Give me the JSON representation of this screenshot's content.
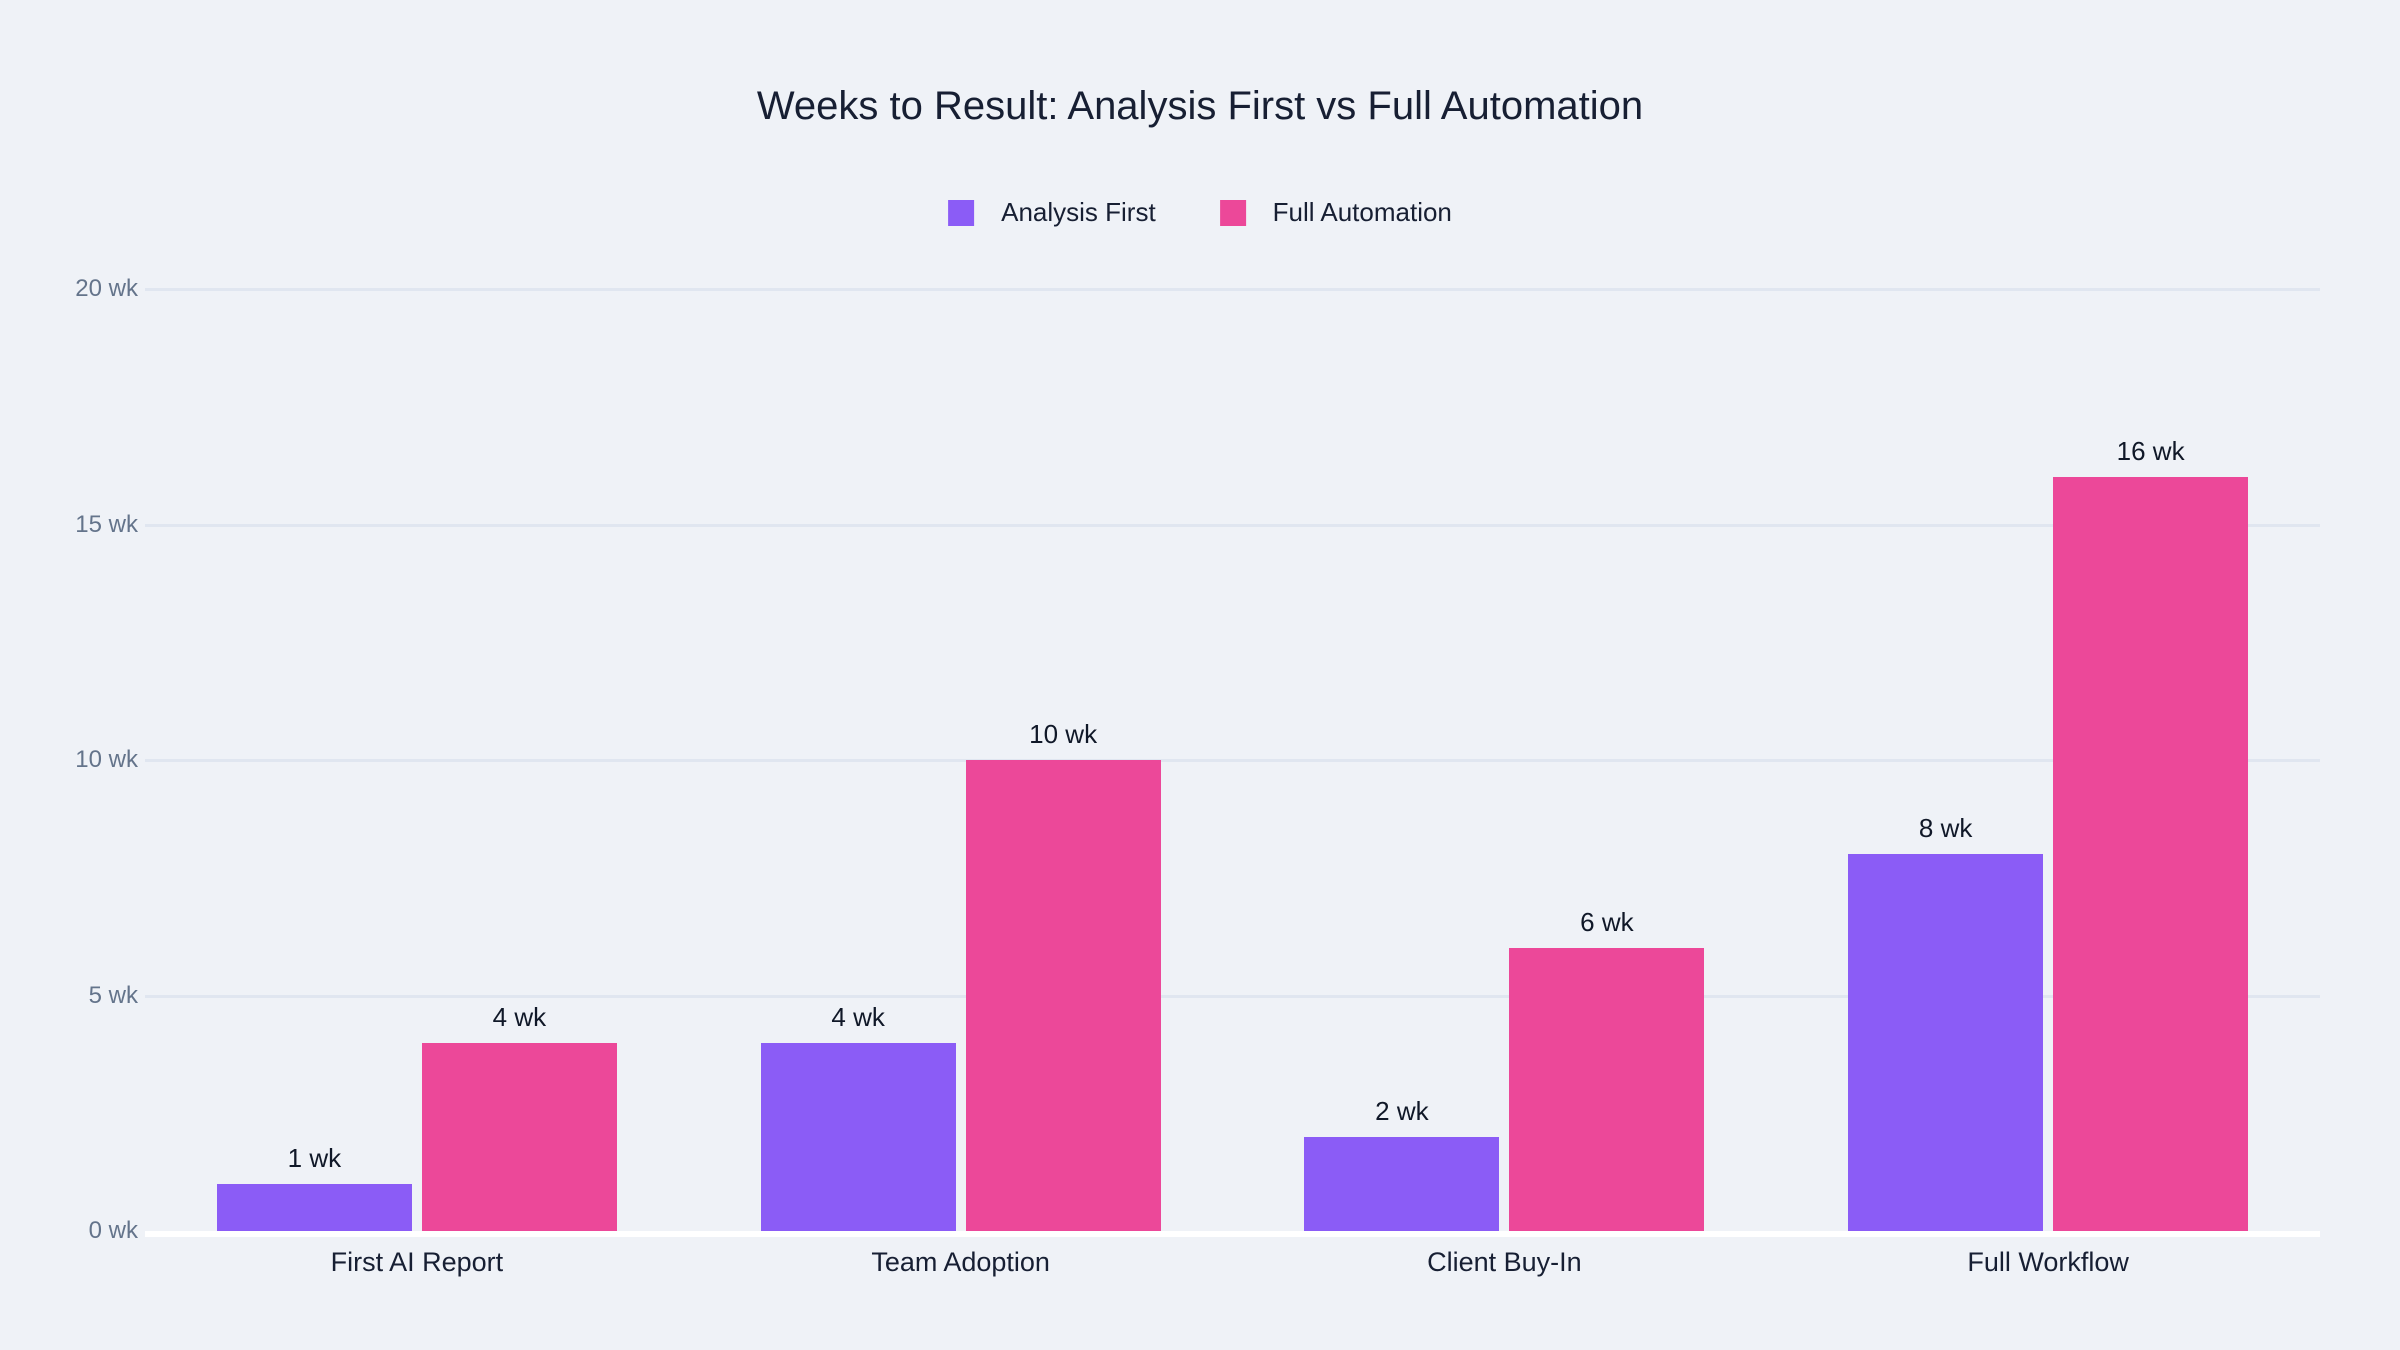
{
  "chart_data": {
    "type": "bar",
    "title": "Weeks to Result: Analysis First vs Full Automation",
    "categories": [
      "First AI Report",
      "Team Adoption",
      "Client Buy-In",
      "Full Workflow"
    ],
    "series": [
      {
        "name": "Analysis First",
        "color": "#8B5CF6",
        "values": [
          1,
          4,
          2,
          8
        ],
        "labels": [
          "1 wk",
          "4 wk",
          "2 wk",
          "8 wk"
        ]
      },
      {
        "name": "Full Automation",
        "color": "#EC4899",
        "values": [
          4,
          10,
          6,
          16
        ],
        "labels": [
          "4 wk",
          "10 wk",
          "6 wk",
          "16 wk"
        ]
      }
    ],
    "ylabel_unit": "wk",
    "yticks": [
      "0 wk",
      "5 wk",
      "10 wk",
      "15 wk",
      "20 wk"
    ],
    "ytick_values": [
      0,
      5,
      10,
      15,
      20
    ],
    "ylim": [
      0,
      20
    ],
    "grid": true,
    "legend_position": "top-center",
    "colors": {
      "background": "#EFF2F7",
      "gridline": "#E0E6F0",
      "axis_line": "#FFFFFF",
      "tick_label": "#64748B",
      "title": "#171F33",
      "value_label": "#101828",
      "category_label": "#171F33"
    }
  }
}
